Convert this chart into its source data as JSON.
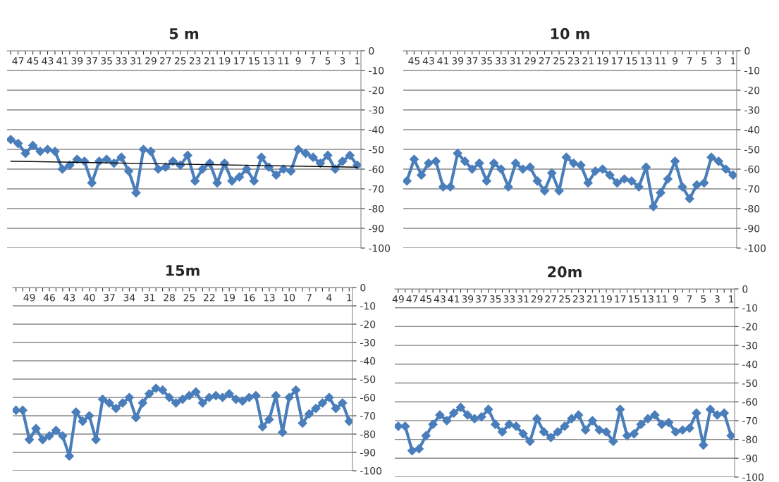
{
  "chart_data": [
    {
      "type": "line",
      "title": "5 m",
      "categories": [
        null,
        "47",
        null,
        "45",
        null,
        "43",
        null,
        "41",
        null,
        "39",
        null,
        "37",
        null,
        "35",
        null,
        "33",
        null,
        "31",
        null,
        "29",
        null,
        "27",
        null,
        "25",
        null,
        "23",
        null,
        "21",
        null,
        "19",
        null,
        "17",
        null,
        "15",
        null,
        "13",
        null,
        "11",
        null,
        "9",
        null,
        "7",
        null,
        "5",
        null,
        "3",
        null,
        "1"
      ],
      "series": [
        {
          "color": "#4a7ebb",
          "values": [
            -45,
            -47,
            -52,
            -48,
            -51,
            -50,
            -51,
            -60,
            -58,
            -55,
            -56,
            -67,
            -56,
            -55,
            -57,
            -54,
            -61,
            -72,
            -50,
            -51,
            -60,
            -59,
            -56,
            -58,
            -53,
            -66,
            -60,
            -57,
            -67,
            -57,
            -66,
            -64,
            -60,
            -66,
            -54,
            -59,
            -63,
            -60,
            -61,
            -50,
            -52,
            -54,
            -57,
            -53,
            -60,
            -56,
            -53,
            -58
          ]
        },
        {
          "type": "line",
          "marker": "none",
          "color": "#000000",
          "values": [
            -56,
            null,
            null,
            null,
            null,
            null,
            null,
            null,
            null,
            null,
            null,
            null,
            null,
            null,
            null,
            null,
            null,
            null,
            null,
            null,
            null,
            null,
            null,
            null,
            null,
            null,
            null,
            null,
            null,
            null,
            null,
            null,
            null,
            null,
            null,
            null,
            null,
            null,
            null,
            null,
            null,
            null,
            null,
            null,
            null,
            null,
            null,
            -59
          ]
        }
      ],
      "ylim": [
        -100,
        0
      ],
      "yticks": [
        0,
        -10,
        -20,
        -30,
        -40,
        -50,
        -60,
        -70,
        -80,
        -90,
        -100
      ],
      "grid": "y",
      "marker": "diamond"
    },
    {
      "type": "line",
      "title": "10 m",
      "categories": [
        null,
        "45",
        null,
        "43",
        null,
        "41",
        null,
        "39",
        null,
        "37",
        null,
        "35",
        null,
        "33",
        null,
        "31",
        null,
        "29",
        null,
        "27",
        null,
        "25",
        null,
        "23",
        null,
        "21",
        null,
        "19",
        null,
        "17",
        null,
        "15",
        null,
        "13",
        null,
        "11",
        null,
        "9",
        null,
        "7",
        null,
        "5",
        null,
        "3",
        null,
        "1"
      ],
      "series": [
        {
          "color": "#4a7ebb",
          "values": [
            -66,
            -55,
            -63,
            -57,
            -56,
            -69,
            -69,
            -52,
            -56,
            -60,
            -57,
            -66,
            -57,
            -60,
            -69,
            -57,
            -60,
            -59,
            -66,
            -71,
            -62,
            -71,
            -54,
            -57,
            -58,
            -67,
            -61,
            -60,
            -63,
            -67,
            -65,
            -66,
            -69,
            -59,
            -79,
            -72,
            -65,
            -56,
            -69,
            -75,
            -68,
            -67,
            -54,
            -56,
            -60,
            -63
          ]
        }
      ],
      "ylim": [
        -100,
        0
      ],
      "yticks": [
        0,
        -10,
        -20,
        -30,
        -40,
        -50,
        -60,
        -70,
        -80,
        -90,
        -100
      ],
      "grid": "y",
      "marker": "diamond"
    },
    {
      "type": "line",
      "title": "15m",
      "categories": [
        null,
        null,
        "49",
        null,
        null,
        "46",
        null,
        null,
        "43",
        null,
        null,
        "40",
        null,
        null,
        "37",
        null,
        null,
        "34",
        null,
        null,
        "31",
        null,
        null,
        "28",
        null,
        null,
        "25",
        null,
        null,
        "22",
        null,
        null,
        "19",
        null,
        null,
        "16",
        null,
        null,
        "13",
        null,
        null,
        "10",
        null,
        null,
        "7",
        null,
        null,
        "4",
        null,
        null,
        "1"
      ],
      "series": [
        {
          "color": "#4a7ebb",
          "values": [
            -67,
            -67,
            -83,
            -77,
            -83,
            -81,
            -78,
            -81,
            -92,
            -68,
            -73,
            -70,
            -83,
            -61,
            -63,
            -66,
            -63,
            -60,
            -71,
            -63,
            -58,
            -55,
            -56,
            -60,
            -63,
            -61,
            -59,
            -57,
            -63,
            -60,
            -59,
            -60,
            -58,
            -61,
            -62,
            -60,
            -59,
            -76,
            -72,
            -59,
            -79,
            -60,
            -56,
            -74,
            -69,
            -66,
            -63,
            -60,
            -66,
            -63,
            -73
          ]
        }
      ],
      "ylim": [
        -100,
        0
      ],
      "yticks": [
        0,
        -10,
        -20,
        -30,
        -40,
        -50,
        -60,
        -70,
        -80,
        -90,
        -100
      ],
      "grid": "y",
      "marker": "diamond"
    },
    {
      "type": "line",
      "title": "20m",
      "categories": [
        "49",
        null,
        "47",
        null,
        "45",
        null,
        "43",
        null,
        "41",
        null,
        "39",
        null,
        "37",
        null,
        "35",
        null,
        "33",
        null,
        "31",
        null,
        "29",
        null,
        "27",
        null,
        "25",
        null,
        "23",
        null,
        "21",
        null,
        "19",
        null,
        "17",
        null,
        "15",
        null,
        "13",
        null,
        "11",
        null,
        "9",
        null,
        "7",
        null,
        "5",
        null,
        "3",
        null,
        "1"
      ],
      "series": [
        {
          "color": "#4a7ebb",
          "values": [
            -73,
            -73,
            -86,
            -85,
            -78,
            -72,
            -67,
            -70,
            -66,
            -63,
            -67,
            -69,
            -68,
            -64,
            -72,
            -76,
            -72,
            -73,
            -77,
            -81,
            -69,
            -76,
            -79,
            -76,
            -73,
            -69,
            -67,
            -75,
            -70,
            -75,
            -76,
            -81,
            -64,
            -78,
            -77,
            -72,
            -69,
            -67,
            -72,
            -71,
            -76,
            -75,
            -74,
            -66,
            -83,
            -64,
            -67,
            -66,
            -78
          ]
        }
      ],
      "ylim": [
        -100,
        0
      ],
      "yticks": [
        0,
        -10,
        -20,
        -30,
        -40,
        -50,
        -60,
        -70,
        -80,
        -90,
        -100
      ],
      "grid": "y",
      "marker": "diamond"
    }
  ]
}
